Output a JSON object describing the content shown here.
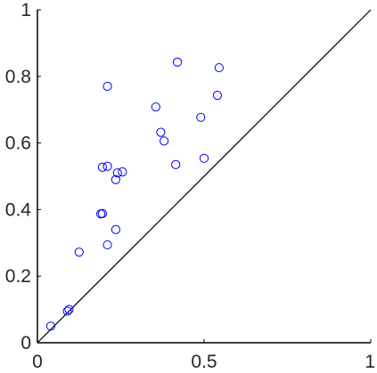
{
  "chart_data": {
    "type": "scatter",
    "title": "",
    "xlabel": "",
    "ylabel": "",
    "xlim": [
      0,
      1
    ],
    "ylim": [
      0,
      1
    ],
    "grid": false,
    "x_ticks": [
      "0",
      "0.5",
      "1"
    ],
    "y_ticks": [
      "0",
      "0.2",
      "0.4",
      "0.6",
      "0.8",
      "1"
    ],
    "reference_line": {
      "from": [
        0,
        0
      ],
      "to": [
        1,
        1
      ]
    },
    "marker": "circle-open",
    "colors": {
      "points": "#0000ff",
      "axes": "#000000",
      "ticks": "#262626",
      "reference_line": "#000000"
    },
    "series": [
      {
        "points": [
          [
            0.04,
            0.05
          ],
          [
            0.09,
            0.095
          ],
          [
            0.095,
            0.1
          ],
          [
            0.125,
            0.272
          ],
          [
            0.21,
            0.294
          ],
          [
            0.235,
            0.34
          ],
          [
            0.19,
            0.387
          ],
          [
            0.195,
            0.388
          ],
          [
            0.195,
            0.527
          ],
          [
            0.21,
            0.53
          ],
          [
            0.235,
            0.49
          ],
          [
            0.24,
            0.51
          ],
          [
            0.255,
            0.513
          ],
          [
            0.21,
            0.77
          ],
          [
            0.355,
            0.708
          ],
          [
            0.37,
            0.632
          ],
          [
            0.38,
            0.606
          ],
          [
            0.415,
            0.535
          ],
          [
            0.42,
            0.843
          ],
          [
            0.49,
            0.677
          ],
          [
            0.5,
            0.554
          ],
          [
            0.54,
            0.743
          ],
          [
            0.545,
            0.826
          ]
        ]
      }
    ]
  }
}
